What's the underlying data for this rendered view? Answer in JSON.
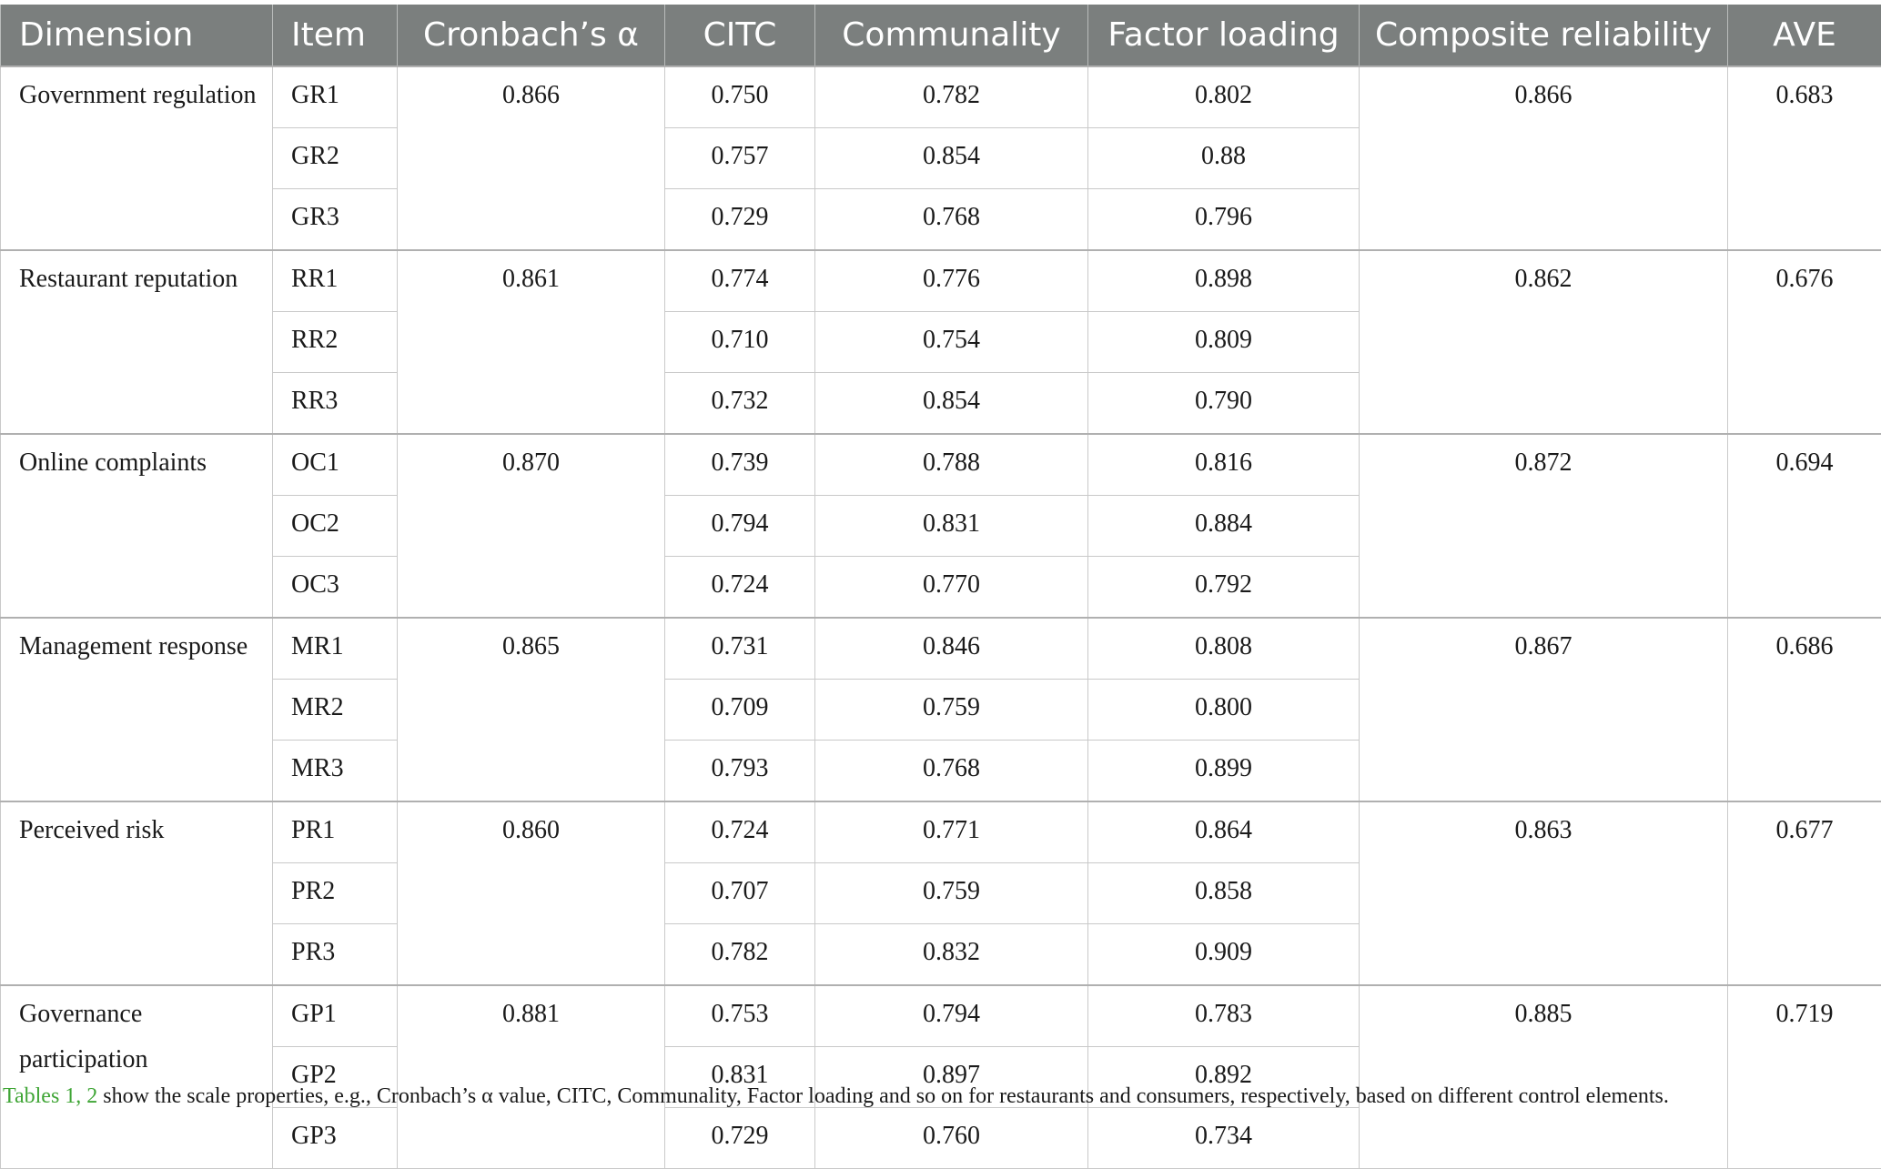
{
  "table": {
    "headers": [
      "Dimension",
      "Item",
      "Cronbach’s α",
      "CITC",
      "Communality",
      "Factor loading",
      "Composite reliability",
      "AVE"
    ],
    "groups": [
      {
        "dimension": "Government regulation",
        "alpha": "0.866",
        "composite_reliability": "0.866",
        "ave": "0.683",
        "rows": [
          {
            "item": "GR1",
            "citc": "0.750",
            "communality": "0.782",
            "factor_loading": "0.802"
          },
          {
            "item": "GR2",
            "citc": "0.757",
            "communality": "0.854",
            "factor_loading": "0.88"
          },
          {
            "item": "GR3",
            "citc": "0.729",
            "communality": "0.768",
            "factor_loading": "0.796"
          }
        ]
      },
      {
        "dimension": "Restaurant reputation",
        "alpha": "0.861",
        "composite_reliability": "0.862",
        "ave": "0.676",
        "rows": [
          {
            "item": "RR1",
            "citc": "0.774",
            "communality": "0.776",
            "factor_loading": "0.898"
          },
          {
            "item": "RR2",
            "citc": "0.710",
            "communality": "0.754",
            "factor_loading": "0.809"
          },
          {
            "item": "RR3",
            "citc": "0.732",
            "communality": "0.854",
            "factor_loading": "0.790"
          }
        ]
      },
      {
        "dimension": "Online complaints",
        "alpha": "0.870",
        "composite_reliability": "0.872",
        "ave": "0.694",
        "rows": [
          {
            "item": "OC1",
            "citc": "0.739",
            "communality": "0.788",
            "factor_loading": "0.816"
          },
          {
            "item": "OC2",
            "citc": "0.794",
            "communality": "0.831",
            "factor_loading": "0.884"
          },
          {
            "item": "OC3",
            "citc": "0.724",
            "communality": "0.770",
            "factor_loading": "0.792"
          }
        ]
      },
      {
        "dimension": "Management response",
        "alpha": "0.865",
        "composite_reliability": "0.867",
        "ave": "0.686",
        "rows": [
          {
            "item": "MR1",
            "citc": "0.731",
            "communality": "0.846",
            "factor_loading": "0.808"
          },
          {
            "item": "MR2",
            "citc": "0.709",
            "communality": "0.759",
            "factor_loading": "0.800"
          },
          {
            "item": "MR3",
            "citc": "0.793",
            "communality": "0.768",
            "factor_loading": "0.899"
          }
        ]
      },
      {
        "dimension": "Perceived risk",
        "alpha": "0.860",
        "composite_reliability": "0.863",
        "ave": "0.677",
        "rows": [
          {
            "item": "PR1",
            "citc": "0.724",
            "communality": "0.771",
            "factor_loading": "0.864"
          },
          {
            "item": "PR2",
            "citc": "0.707",
            "communality": "0.759",
            "factor_loading": "0.858"
          },
          {
            "item": "PR3",
            "citc": "0.782",
            "communality": "0.832",
            "factor_loading": "0.909"
          }
        ]
      },
      {
        "dimension": "Governance participation",
        "alpha": "0.881",
        "composite_reliability": "0.885",
        "ave": "0.719",
        "rows": [
          {
            "item": "GP1",
            "citc": "0.753",
            "communality": "0.794",
            "factor_loading": "0.783"
          },
          {
            "item": "GP2",
            "citc": "0.831",
            "communality": "0.897",
            "factor_loading": "0.892"
          },
          {
            "item": "GP3",
            "citc": "0.729",
            "communality": "0.760",
            "factor_loading": "0.734"
          }
        ]
      }
    ]
  },
  "caption": {
    "link_text": "Tables 1, 2",
    "text": " show the scale properties, e.g., Cronbach’s α value, CITC, Communality, Factor loading and so on for restaurants and consumers, respectively, based on different control elements."
  }
}
